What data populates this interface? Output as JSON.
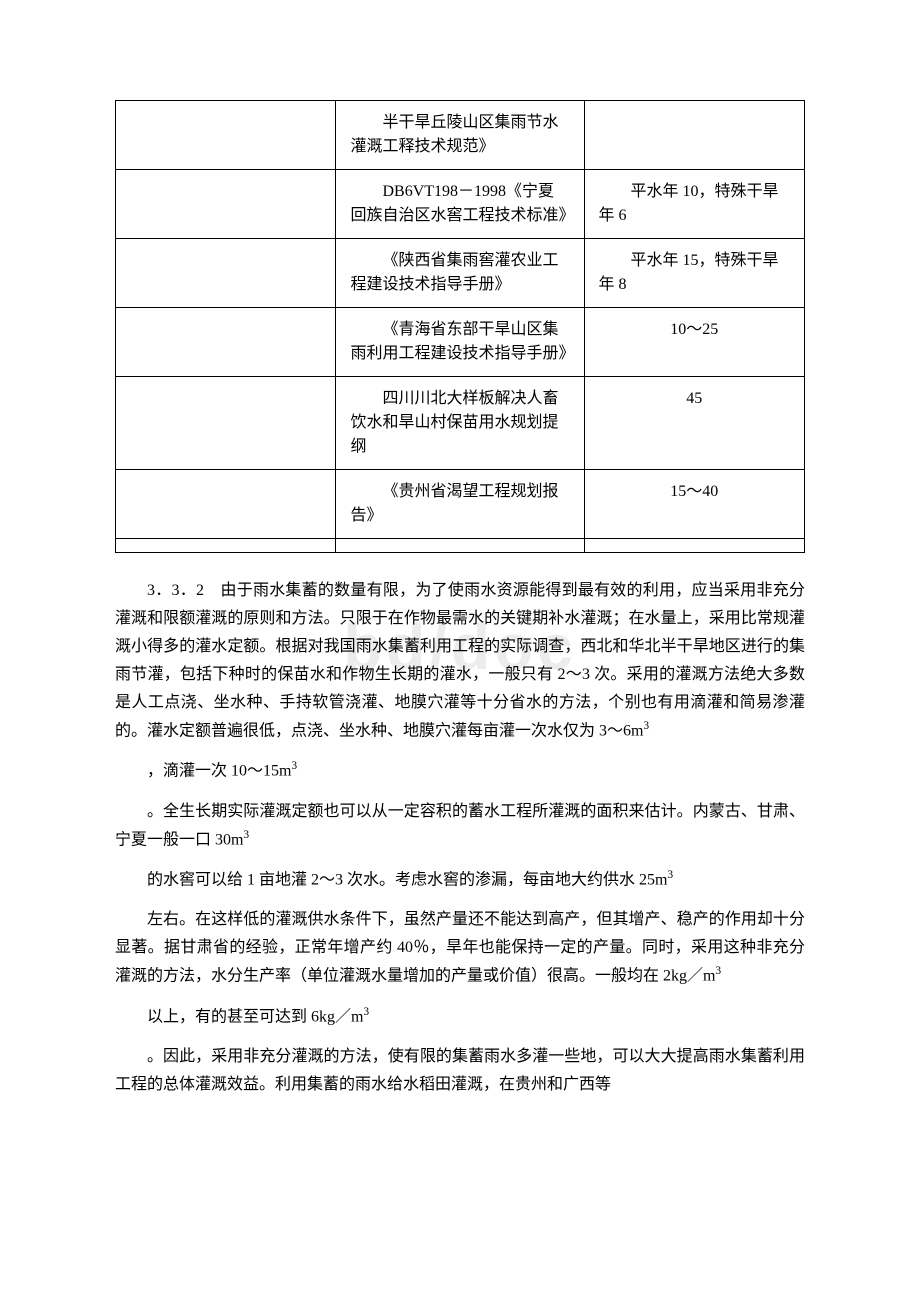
{
  "watermark": "bd/doc",
  "table": {
    "rows": [
      {
        "c1": "",
        "c2": "半干旱丘陵山区集雨节水灌溉工释技术规范》",
        "c3": "",
        "c3_center": false
      },
      {
        "c1": "",
        "c2": "DB6VT198－1998《宁夏回族自治区水窖工程技术标准》",
        "c3": "平水年 10，特殊干旱年 6",
        "c3_center": false
      },
      {
        "c1": "",
        "c2": "《陕西省集雨窖灌农业工程建设技术指导手册》",
        "c3": "平水年 15，特殊干旱年 8",
        "c3_center": false
      },
      {
        "c1": "",
        "c2": "《青海省东部干旱山区集雨利用工程建设技术指导手册》",
        "c3": "10～25",
        "c3_center": true
      },
      {
        "c1": "",
        "c2": "四川川北大样板解决人畜饮水和旱山村保苗用水规划提纲",
        "c3": "45",
        "c3_center": true
      },
      {
        "c1": "",
        "c2": "《贵州省渴望工程规划报告》",
        "c3": "15～40",
        "c3_center": true
      }
    ]
  },
  "paragraphs": {
    "p1_prefix": "3．3．2　由于雨水集蓄的数量有限，为了使雨水资源能得到最有效的利用，应当采用非充分灌溉和限额灌溉的原则和方法。只限于在作物最需水的关键期补水灌溉；在水量上，采用比常规灌溉小得多的灌水定额。根据对我国雨水集蓄利用工程的实际调查，西北和华北半干旱地区进行的集雨节灌，包括下种时的保苗水和作物生长期的灌水，一般只有 2～3 次。采用的灌溉方法绝大多数是人工点浇、坐水种、手持软管浇灌、地膜穴灌等十分省水的方法，个别也有用滴灌和简易渗灌的。灌水定额普遍很低，点浇、坐水种、地膜穴灌每亩灌一次水仅为 3～6m",
    "p1_sup": "3",
    "p2_prefix": "，滴灌一次 10～15m",
    "p2_sup": "3",
    "p3_prefix": "。全生长期实际灌溉定额也可以从一定容积的蓄水工程所灌溉的面积来估计。内蒙古、甘肃、宁夏一般一口 30m",
    "p3_sup": "3",
    "p4_prefix": "的水窖可以给 1 亩地灌 2～3 次水。考虑水窖的渗漏，每亩地大约供水 25m",
    "p4_sup": "3",
    "p5_prefix": "左右。在这样低的灌溉供水条件下，虽然产量还不能达到高产，但其增产、稳产的作用却十分显著。据甘肃省的经验，正常年增产约 40％，旱年也能保持一定的产量。同时，采用这种非充分灌溉的方法，水分生产率（单位灌溉水量增加的产量或价值）很高。一般均在 2kg／m",
    "p5_sup": "3",
    "p6_prefix": "以上，有的甚至可达到 6kg／m",
    "p6_sup": "3",
    "p7": "。因此，采用非充分灌溉的方法，使有限的集蓄雨水多灌一些地，可以大大提高雨水集蓄利用工程的总体灌溉效益。利用集蓄的雨水给水稻田灌溉，在贵州和广西等"
  }
}
